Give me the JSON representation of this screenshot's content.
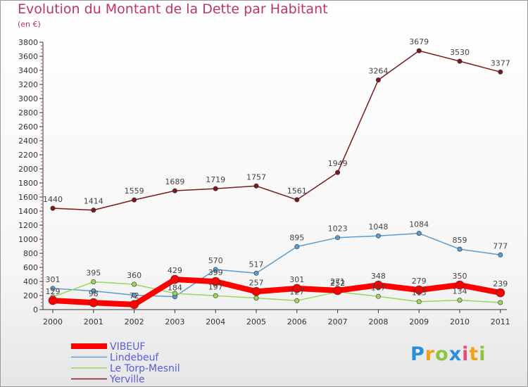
{
  "title": "Evolution du Montant de la Dette par Habitant",
  "subtitle": "(en €)",
  "brand": {
    "letters": [
      "P",
      "r",
      "o",
      "x",
      "i",
      "t",
      "i"
    ],
    "colors": [
      "#2a8fd9",
      "#f1a21a",
      "#8cc63f",
      "#2a8fd9",
      "#e24a7a",
      "#f1a21a",
      "#8cc63f"
    ]
  },
  "chart_data": {
    "type": "line",
    "x": [
      "2000",
      "2001",
      "2002",
      "2003",
      "2004",
      "2005",
      "2006",
      "2007",
      "2008",
      "2009",
      "2010",
      "2011"
    ],
    "ylim": [
      0,
      3800
    ],
    "yticks": [
      0,
      200,
      400,
      600,
      800,
      1000,
      1200,
      1400,
      1600,
      1800,
      2000,
      2200,
      2400,
      2600,
      2800,
      3000,
      3200,
      3400,
      3600,
      3800
    ],
    "grid": false,
    "legend_position": "bottom-left",
    "series": [
      {
        "name": "Yerville",
        "color": "#7a1a1a",
        "width": 1.5,
        "values": [
          1440,
          1414,
          1559,
          1689,
          1719,
          1757,
          1561,
          1949,
          3264,
          3679,
          3530,
          3377
        ],
        "labels": [
          "1440",
          "1414",
          "1559",
          "1689",
          "1719",
          "1757",
          "1561",
          "1949",
          "3264",
          "3679",
          "3530",
          "3377"
        ]
      },
      {
        "name": "Lindebeuf",
        "color": "#5c9ccf",
        "width": 1.5,
        "values": [
          301,
          265,
          205,
          184,
          570,
          517,
          895,
          1023,
          1048,
          1084,
          859,
          777
        ],
        "labels": [
          "301",
          "",
          "",
          "184",
          "570",
          "517",
          "895",
          "1023",
          "1048",
          "1084",
          "859",
          "777"
        ]
      },
      {
        "name": "Le Torp-Mesnil",
        "color": "#9ad65c",
        "width": 1.5,
        "values": [
          179,
          395,
          360,
          230,
          197,
          164,
          127,
          252,
          187,
          113,
          134,
          100
        ],
        "labels": [
          "",
          "395",
          "360",
          "",
          "197",
          "",
          "127",
          "252",
          "187",
          "113",
          "134",
          ""
        ]
      },
      {
        "name": "VIBEUF",
        "color": "#ff0000",
        "width": 8,
        "values": [
          129,
          98,
          72,
          429,
          399,
          257,
          301,
          271,
          348,
          279,
          350,
          239
        ],
        "labels": [
          "129",
          "98",
          "72",
          "429",
          "399",
          "257",
          "301",
          "271",
          "348",
          "279",
          "350",
          "239"
        ]
      }
    ]
  }
}
